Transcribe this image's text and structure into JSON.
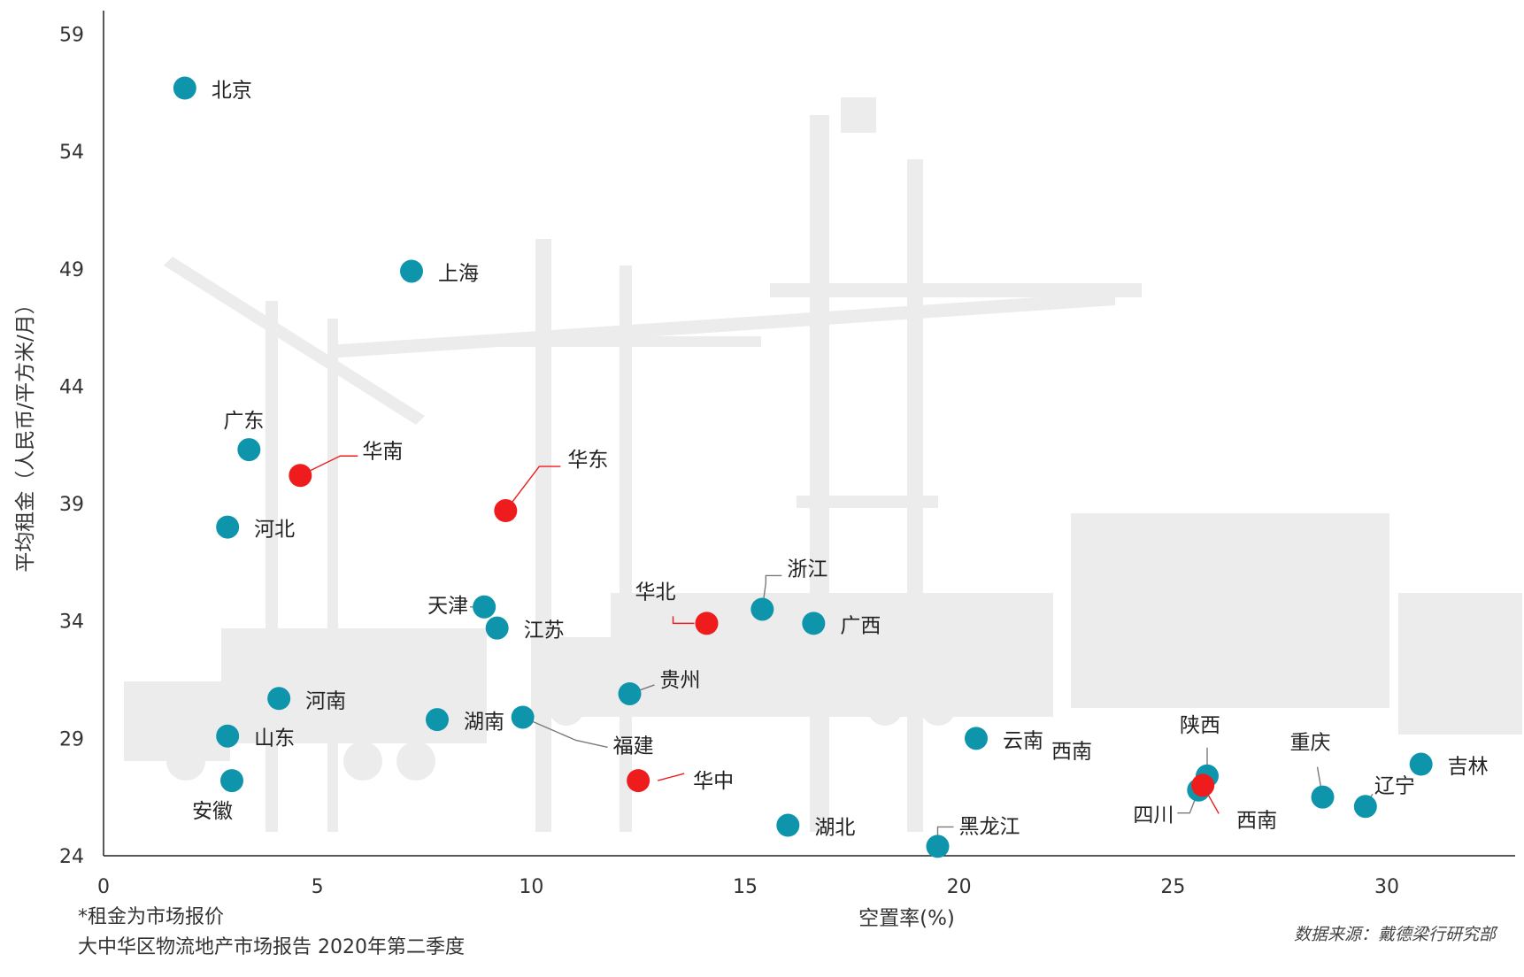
{
  "chart_data": {
    "type": "scatter",
    "xlabel": "空置率(%)",
    "ylabel": "平均租金（人民币/平方米/月）",
    "xlim": [
      0,
      33
    ],
    "ylim": [
      24,
      60
    ],
    "xticks": [
      0,
      5,
      10,
      15,
      20,
      25,
      30
    ],
    "yticks": [
      24,
      29,
      34,
      39,
      44,
      49,
      54,
      59
    ],
    "grid": false,
    "notes": [
      "*租金为市场报价",
      "大中华区物流地产市场报告 2020年第二季度"
    ],
    "source": "数据来源：戴德梁行研究部",
    "colors": {
      "province": "#0e95ab",
      "region": "#ee1c1c",
      "axis": "#222222"
    },
    "points": [
      {
        "name": "北京",
        "x": 1.9,
        "y": 56.7,
        "kind": "province"
      },
      {
        "name": "上海",
        "x": 7.2,
        "y": 48.9,
        "kind": "province"
      },
      {
        "name": "广东",
        "x": 3.4,
        "y": 41.3,
        "kind": "province"
      },
      {
        "name": "华南",
        "x": 4.6,
        "y": 40.2,
        "kind": "region"
      },
      {
        "name": "河北",
        "x": 2.9,
        "y": 38.0,
        "kind": "province"
      },
      {
        "name": "华东",
        "x": 9.4,
        "y": 38.7,
        "kind": "region"
      },
      {
        "name": "天津",
        "x": 8.9,
        "y": 34.6,
        "kind": "province"
      },
      {
        "name": "江苏",
        "x": 9.2,
        "y": 33.7,
        "kind": "province"
      },
      {
        "name": "浙江",
        "x": 15.4,
        "y": 34.5,
        "kind": "province"
      },
      {
        "name": "华北",
        "x": 14.1,
        "y": 33.9,
        "kind": "region"
      },
      {
        "name": "广西",
        "x": 16.6,
        "y": 33.9,
        "kind": "province"
      },
      {
        "name": "贵州",
        "x": 12.3,
        "y": 30.9,
        "kind": "province"
      },
      {
        "name": "河南",
        "x": 4.1,
        "y": 30.7,
        "kind": "province"
      },
      {
        "name": "湖南",
        "x": 7.8,
        "y": 29.8,
        "kind": "province"
      },
      {
        "name": "福建",
        "x": 9.8,
        "y": 29.9,
        "kind": "province"
      },
      {
        "name": "山东",
        "x": 2.9,
        "y": 29.1,
        "kind": "province"
      },
      {
        "name": "云南",
        "x": 20.4,
        "y": 29.0,
        "kind": "province"
      },
      {
        "name": "华中",
        "x": 12.5,
        "y": 27.2,
        "kind": "region"
      },
      {
        "name": "安徽",
        "x": 3.0,
        "y": 27.2,
        "kind": "province"
      },
      {
        "name": "湖北",
        "x": 16.0,
        "y": 25.3,
        "kind": "province"
      },
      {
        "name": "黑龙江",
        "x": 19.5,
        "y": 24.4,
        "kind": "province"
      },
      {
        "name": "陕西",
        "x": 25.8,
        "y": 27.4,
        "kind": "province"
      },
      {
        "name": "四川",
        "x": 25.6,
        "y": 26.8,
        "kind": "province"
      },
      {
        "name": "西南",
        "x": 25.7,
        "y": 27.0,
        "kind": "region"
      },
      {
        "name": "重庆",
        "x": 28.5,
        "y": 26.5,
        "kind": "province"
      },
      {
        "name": "辽宁",
        "x": 29.5,
        "y": 26.1,
        "kind": "province"
      },
      {
        "name": "吉林",
        "x": 30.8,
        "y": 27.9,
        "kind": "province"
      }
    ],
    "extra_labels": [
      "西南"
    ]
  }
}
